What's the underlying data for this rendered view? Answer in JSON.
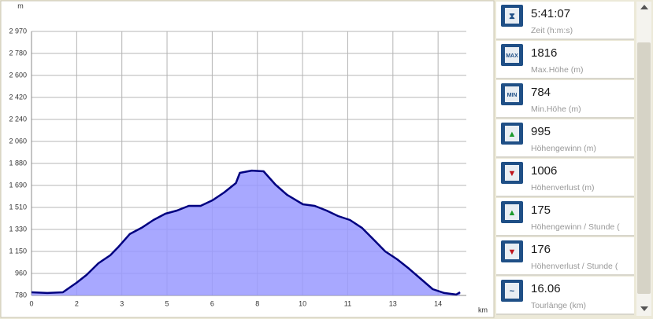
{
  "chart_data": {
    "type": "area",
    "y_unit": "m",
    "x_unit": "km",
    "x": [
      0,
      0.56,
      1.11,
      1.39,
      1.59,
      1.95,
      2.37,
      2.79,
      3.06,
      3.48,
      3.9,
      4.32,
      4.74,
      5.15,
      5.57,
      5.99,
      6.41,
      6.82,
      7.24,
      7.38,
      7.8,
      8.22,
      8.64,
      9.05,
      9.61,
      10.03,
      10.45,
      10.86,
      11.28,
      11.7,
      12.12,
      12.53,
      12.95,
      13.37,
      13.79,
      14.21,
      14.62,
      15.04,
      15.18
    ],
    "values": [
      806,
      800,
      806,
      852,
      884,
      950,
      1047,
      1113,
      1178,
      1289,
      1341,
      1406,
      1458,
      1484,
      1523,
      1523,
      1569,
      1634,
      1712,
      1797,
      1816,
      1810,
      1699,
      1615,
      1536,
      1523,
      1484,
      1438,
      1406,
      1341,
      1243,
      1145,
      1080,
      1002,
      917,
      832,
      800,
      787,
      806
    ],
    "color": "#000080",
    "fill_color": "#9999ff",
    "xlim": [
      0,
      15.4
    ],
    "xticks": [
      0,
      {
        "value": 1.6,
        "label": "2"
      },
      {
        "value": 3.2,
        "label": "3"
      },
      {
        "value": 4.8,
        "label": "5"
      },
      {
        "value": 6.4,
        "label": "6"
      },
      8,
      {
        "value": 9.6,
        "label": "10"
      },
      {
        "value": 11.2,
        "label": "11"
      },
      {
        "value": 12.8,
        "label": "13"
      },
      {
        "value": 14.4,
        "label": "14"
      }
    ],
    "ylim": [
      780,
      2970
    ],
    "yticks": [
      780,
      {
        "value": 962.5,
        "label": "960"
      },
      {
        "value": 1145,
        "label": "1 150"
      },
      {
        "value": 1327.5,
        "label": "1 330"
      },
      {
        "value": 1510,
        "label": "1 510"
      },
      {
        "value": 1692.5,
        "label": "1 690"
      },
      {
        "value": 1875,
        "label": "1 880"
      },
      {
        "value": 2057.5,
        "label": "2 060"
      },
      {
        "value": 2240,
        "label": "2 240"
      },
      {
        "value": 2422.5,
        "label": "2 420"
      },
      {
        "value": 2605,
        "label": "2 600"
      },
      {
        "value": 2787.5,
        "label": "2 780"
      },
      {
        "value": 2970,
        "label": "2 970"
      }
    ],
    "grid": true
  },
  "stats": [
    {
      "value": "5:41:07",
      "label": "Zeit (h:m:s)"
    },
    {
      "value": "1816",
      "label": "Max.Höhe (m)"
    },
    {
      "value": "784",
      "label": "Min.Höhe (m)"
    },
    {
      "value": "995",
      "label": "Höhengewinn (m)"
    },
    {
      "value": "1006",
      "label": "Höhenverlust (m)"
    },
    {
      "value": "175",
      "label": "Höhengewinn  /  Stunde ("
    },
    {
      "value": "176",
      "label": "Höhenverlust  /  Stunde ("
    },
    {
      "value": "16.06",
      "label": "Tourlänge (km)"
    }
  ]
}
